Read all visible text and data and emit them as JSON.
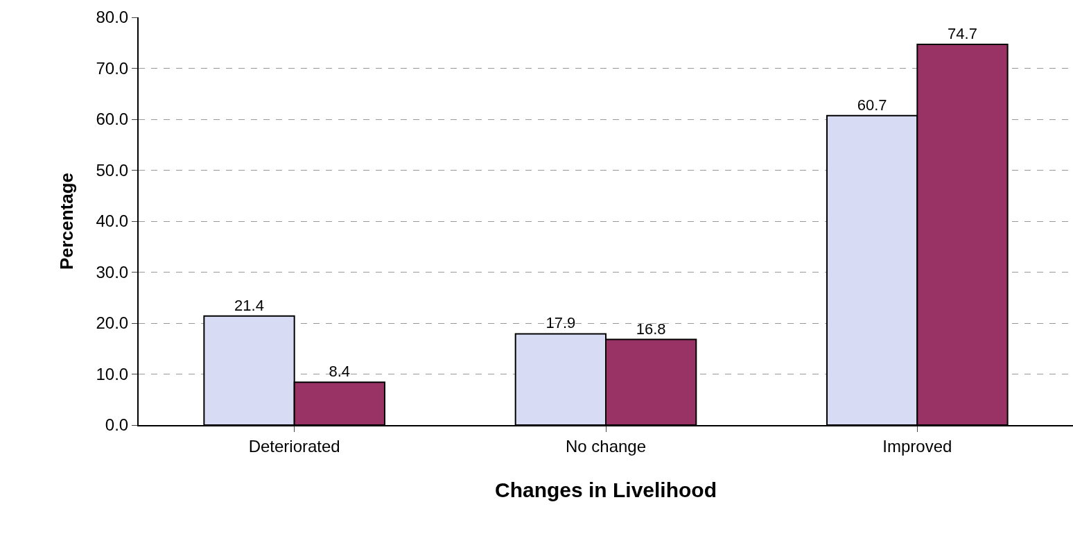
{
  "chart_data": {
    "type": "bar",
    "xlabel": "Changes in Livelihood",
    "ylabel": "Percentage",
    "categories": [
      "Deteriorated",
      "No change",
      "Improved"
    ],
    "series": [
      {
        "color": "#d8dbf4",
        "values": [
          21.4,
          17.9,
          60.7
        ]
      },
      {
        "color": "#993366",
        "values": [
          8.4,
          16.8,
          74.7
        ]
      }
    ],
    "ylim": [
      0,
      80
    ],
    "yticks": [
      {
        "value": 0,
        "label": "0.0"
      },
      {
        "value": 10,
        "label": "10.0"
      },
      {
        "value": 20,
        "label": "20.0"
      },
      {
        "value": 30,
        "label": "30.0"
      },
      {
        "value": 40,
        "label": "40.0"
      },
      {
        "value": 50,
        "label": "50.0"
      },
      {
        "value": 60,
        "label": "60.0"
      },
      {
        "value": 70,
        "label": "70.0"
      },
      {
        "value": 80,
        "label": "80.0"
      }
    ],
    "grid": "y",
    "data_labels": true,
    "legend": false
  }
}
